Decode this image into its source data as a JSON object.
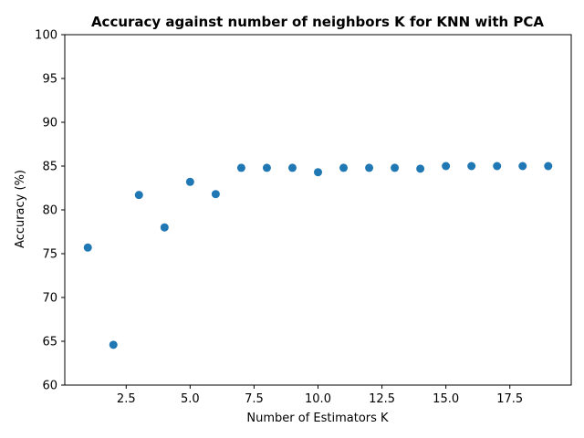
{
  "chart_data": {
    "type": "scatter",
    "title": "Accuracy against number of neighbors K for KNN with PCA",
    "xlabel": "Number of Estimators K",
    "ylabel": "Accuracy (%)",
    "xlim": [
      0.1,
      19.9
    ],
    "ylim": [
      60,
      100
    ],
    "xticks": [
      2.5,
      5.0,
      7.5,
      10.0,
      12.5,
      15.0,
      17.5
    ],
    "xtick_labels": [
      "2.5",
      "5.0",
      "7.5",
      "10.0",
      "12.5",
      "15.0",
      "17.5"
    ],
    "yticks": [
      60,
      65,
      70,
      75,
      80,
      85,
      90,
      95,
      100
    ],
    "ytick_labels": [
      "60",
      "65",
      "70",
      "75",
      "80",
      "85",
      "90",
      "95",
      "100"
    ],
    "grid": false,
    "color": "#1f77b4",
    "x": [
      1,
      2,
      3,
      4,
      5,
      6,
      7,
      8,
      9,
      10,
      11,
      12,
      13,
      14,
      15,
      16,
      17,
      18,
      19
    ],
    "y": [
      75.7,
      64.6,
      81.7,
      78.0,
      83.2,
      81.8,
      84.8,
      84.8,
      84.8,
      84.3,
      84.8,
      84.8,
      84.8,
      84.7,
      85.0,
      85.0,
      85.0,
      85.0,
      85.0
    ]
  }
}
